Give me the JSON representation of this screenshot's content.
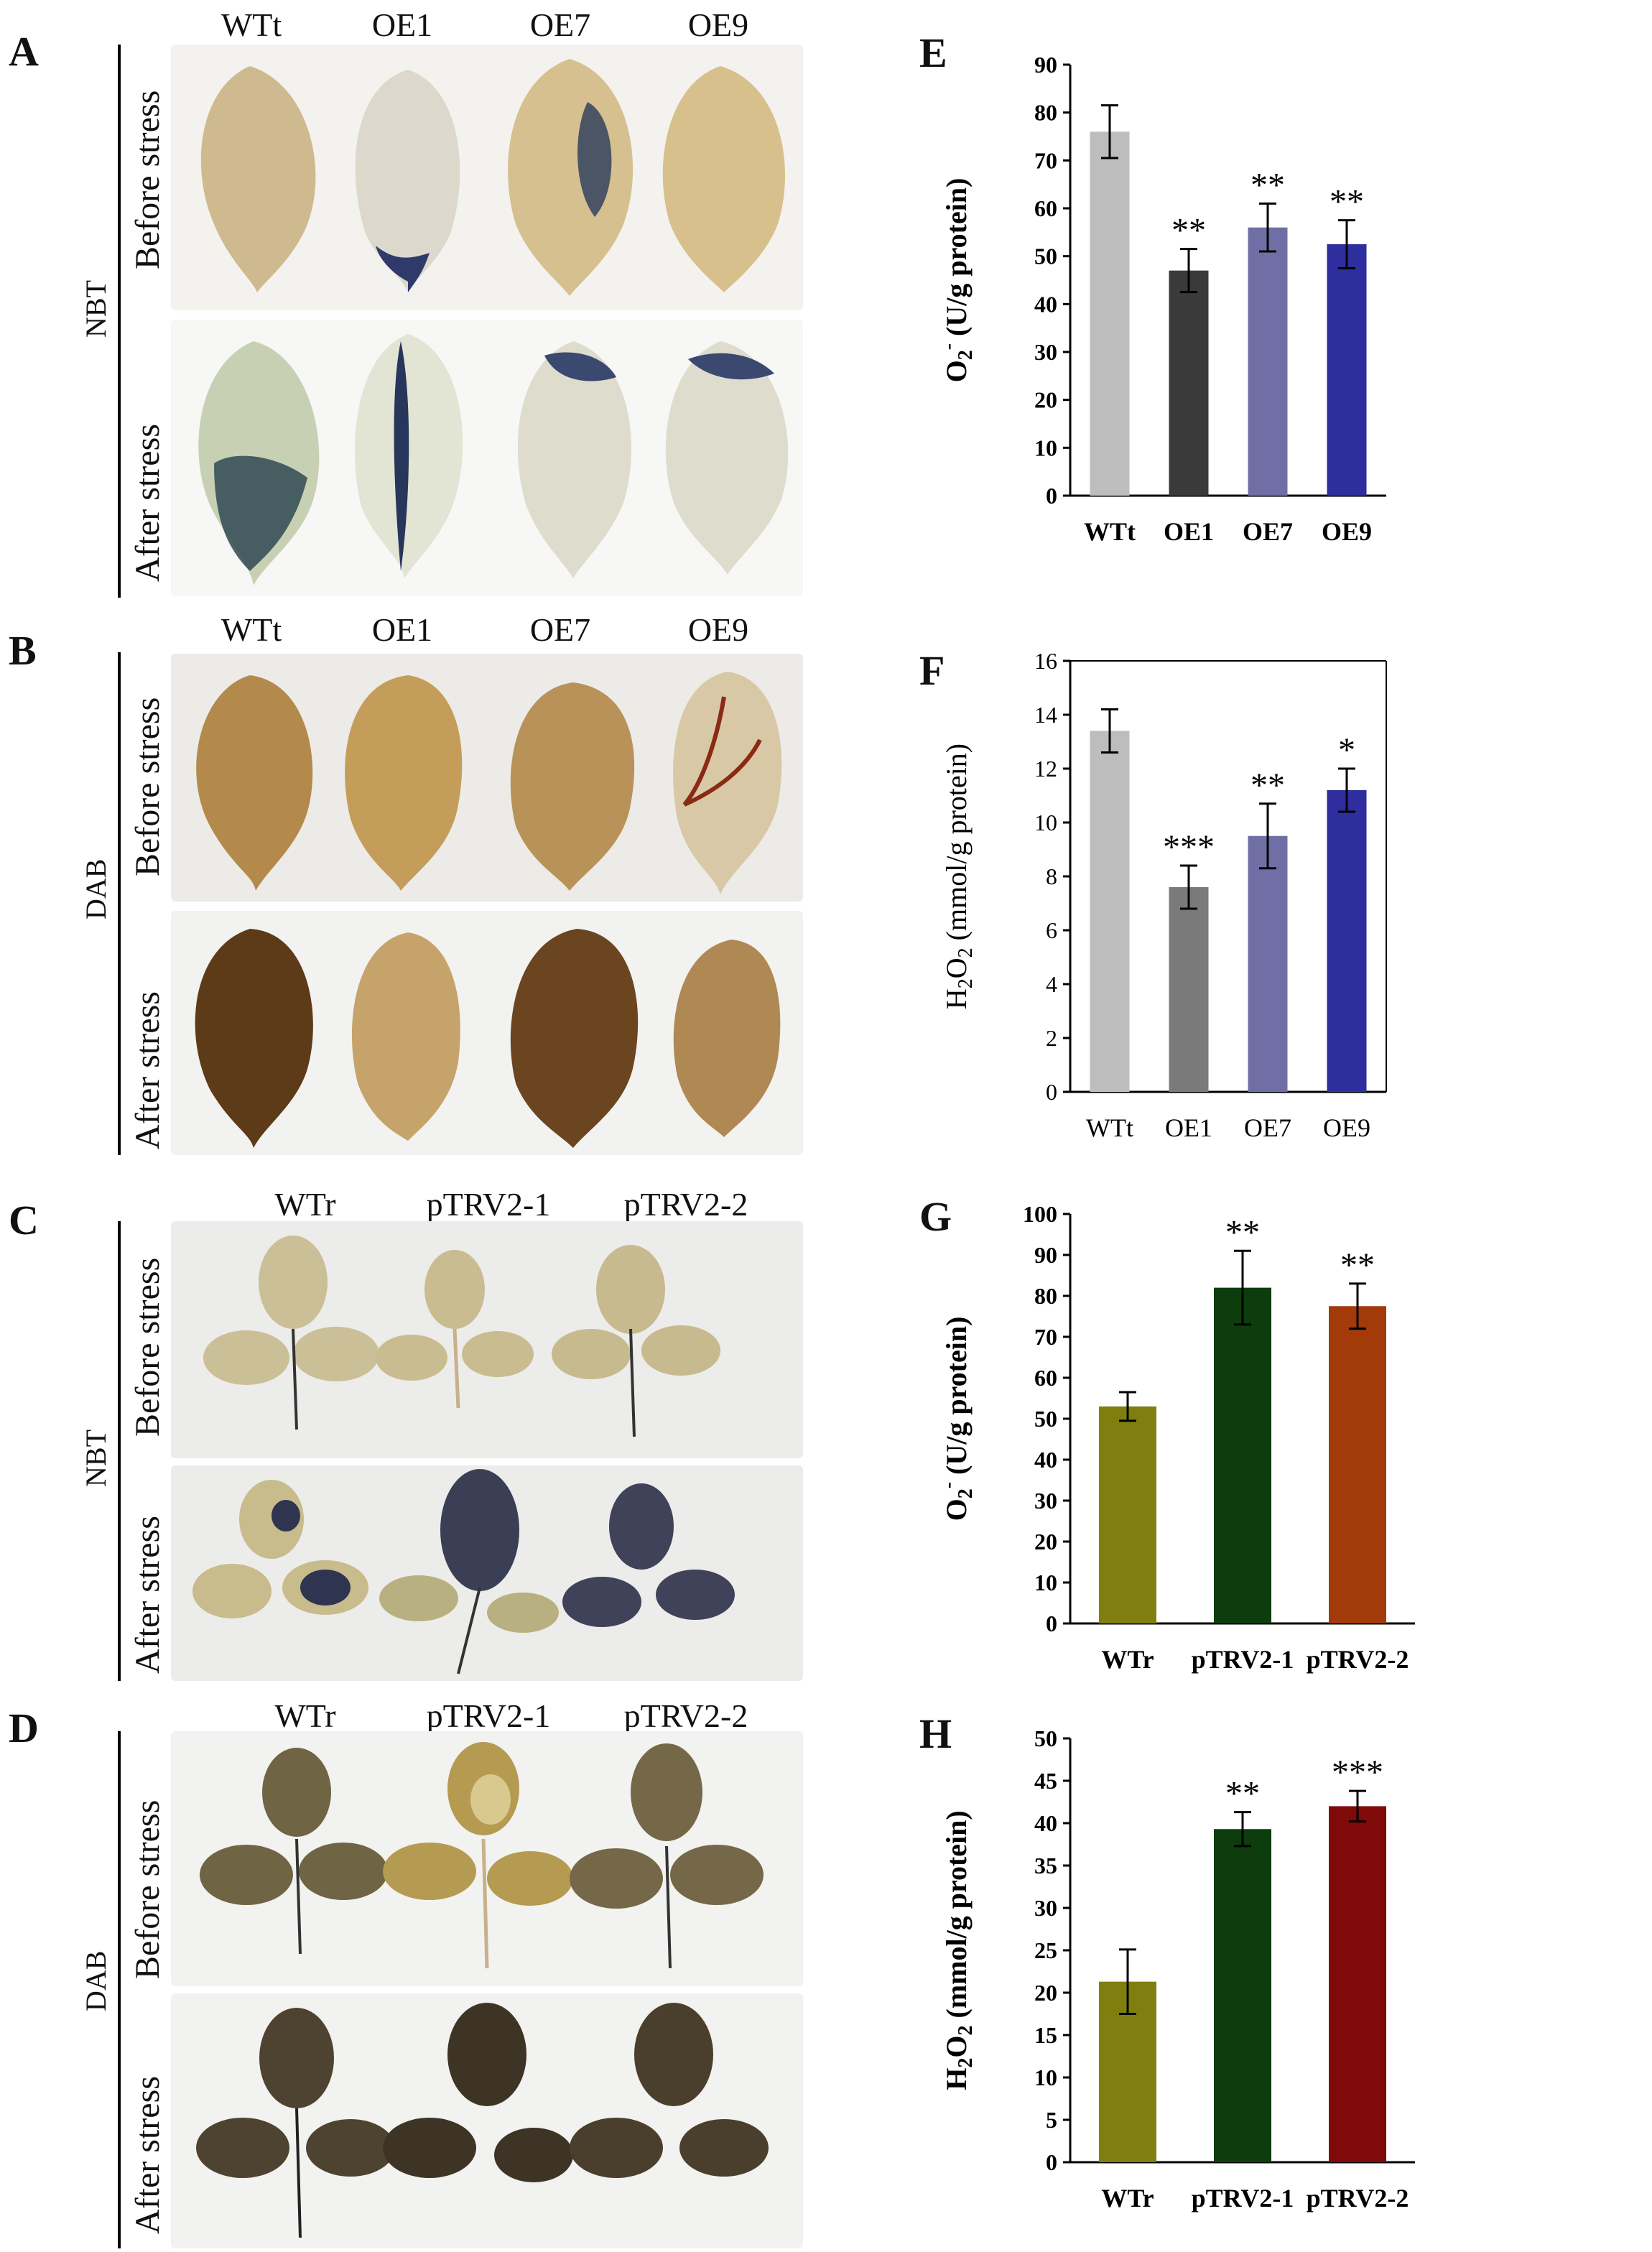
{
  "panels": {
    "A": {
      "letter": "A",
      "stain": "NBT",
      "columns": [
        "WTt",
        "OE1",
        "OE7",
        "OE9"
      ],
      "rows": [
        "Before stress",
        "After stress"
      ]
    },
    "B": {
      "letter": "B",
      "stain": "DAB",
      "columns": [
        "WTt",
        "OE1",
        "OE7",
        "OE9"
      ],
      "rows": [
        "Before stress",
        "After stress"
      ]
    },
    "C": {
      "letter": "C",
      "stain": "NBT",
      "columns": [
        "WTr",
        "pTRV2-1",
        "pTRV2-2"
      ],
      "rows": [
        "Before stress",
        "After stress"
      ]
    },
    "D": {
      "letter": "D",
      "stain": "DAB",
      "columns": [
        "WTr",
        "pTRV2-1",
        "pTRV2-2"
      ],
      "rows": [
        "Before stress",
        "After stress"
      ]
    }
  },
  "chart_data": [
    {
      "panel": "E",
      "type": "bar",
      "ylabel": "O2- (U/g protein)",
      "categories": [
        "WTt",
        "OE1",
        "OE7",
        "OE9"
      ],
      "values": [
        76,
        47,
        56,
        52.5
      ],
      "errors": [
        5.5,
        4.5,
        5,
        5
      ],
      "significance": [
        "",
        "**",
        "**",
        "**"
      ],
      "colors": [
        "#bdbdbd",
        "#3a3a3a",
        "#6f6fa6",
        "#2e2e9e"
      ],
      "ylim": [
        0,
        90
      ],
      "yticks": [
        "0",
        "10",
        "20",
        "30",
        "40",
        "50",
        "60",
        "70",
        "80",
        "90"
      ]
    },
    {
      "panel": "F",
      "type": "bar",
      "ylabel": "H2O2 (mmol/g protein)",
      "categories": [
        "WTt",
        "OE1",
        "OE7",
        "OE9"
      ],
      "values": [
        13.4,
        7.6,
        9.5,
        11.2
      ],
      "errors": [
        0.8,
        0.8,
        1.2,
        0.8
      ],
      "significance": [
        "",
        "***",
        "**",
        "*"
      ],
      "colors": [
        "#bdbdbd",
        "#7a7a7a",
        "#6f6fa6",
        "#2e2e9e"
      ],
      "ylim": [
        0,
        16
      ],
      "yticks": [
        "0",
        "2",
        "4",
        "6",
        "8",
        "10",
        "12",
        "14",
        "16"
      ]
    },
    {
      "panel": "G",
      "type": "bar",
      "ylabel": "O2- (U/g protein)",
      "categories": [
        "WTr",
        "pTRV2-1",
        "pTRV2-2"
      ],
      "values": [
        53,
        82,
        77.5
      ],
      "errors": [
        3.5,
        9,
        5.5
      ],
      "significance": [
        "",
        "**",
        "**"
      ],
      "colors": [
        "#7f7f10",
        "#0d3d0d",
        "#a33a0a"
      ],
      "ylim": [
        0,
        100
      ],
      "yticks": [
        "0",
        "10",
        "20",
        "30",
        "40",
        "50",
        "60",
        "70",
        "80",
        "90",
        "100"
      ]
    },
    {
      "panel": "H",
      "type": "bar",
      "ylabel": "H2O2 (mmol/g protein)",
      "categories": [
        "WTr",
        "pTRV2-1",
        "pTRV2-2"
      ],
      "values": [
        21.3,
        39.3,
        42
      ],
      "errors": [
        3.8,
        2,
        1.8
      ],
      "significance": [
        "",
        "**",
        "***"
      ],
      "colors": [
        "#7f7f10",
        "#0d3d0d",
        "#7f0a0a"
      ],
      "ylim": [
        0,
        50
      ],
      "yticks": [
        "0",
        "5",
        "10",
        "15",
        "20",
        "25",
        "30",
        "35",
        "40",
        "45",
        "50"
      ]
    }
  ]
}
